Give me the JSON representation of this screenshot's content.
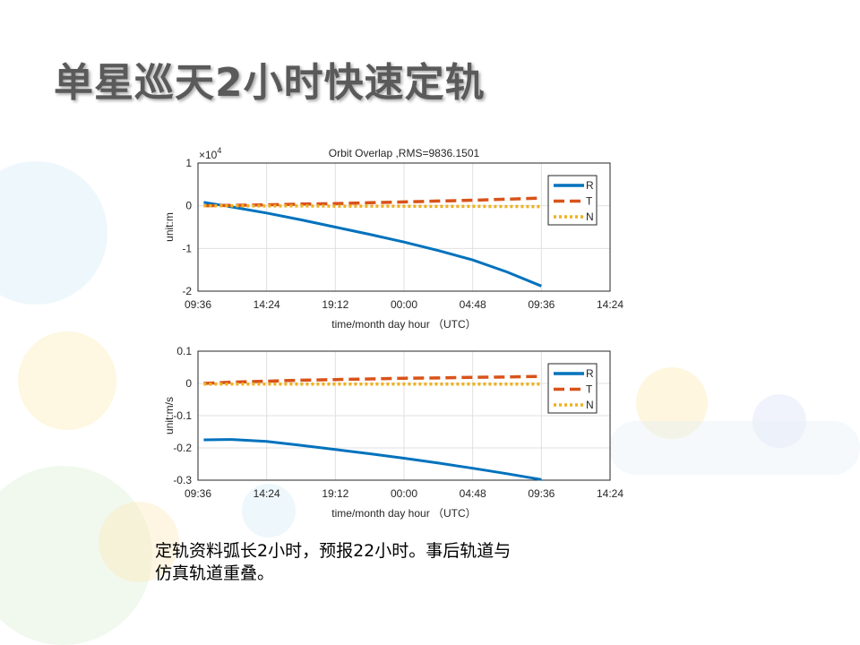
{
  "slide": {
    "title": "单星巡天2小时快速定轨",
    "caption_line1": "定轨资料弧长2小时，预报22小时。事后轨道与",
    "caption_line2": "仿真轨道重叠。"
  },
  "colors": {
    "R": "#0072bd",
    "T": "#d95319",
    "N": "#edb120"
  },
  "chart_data": [
    {
      "type": "line",
      "title": "Orbit Overlap ,RMS=9836.1501",
      "xlabel": "time/month day hour （UTC）",
      "ylabel": "unit:m",
      "y_exponent": "×10",
      "y_exponent_power": "4",
      "x_unit": "hours since 09:36",
      "xlim": [
        0,
        28.8
      ],
      "ylim": [
        -2,
        1
      ],
      "yticks": [
        1,
        0,
        -1,
        -2
      ],
      "ytick_labels": [
        "1",
        "0",
        "-1",
        "-2"
      ],
      "xtick_labels": [
        "09:36",
        "14:24",
        "19:12",
        "00:00",
        "04:48",
        "09:36",
        "14:24"
      ],
      "grid": true,
      "legend": "top-right",
      "x": [
        0.4,
        2.4,
        4.8,
        7.2,
        9.6,
        12,
        14.4,
        16.8,
        19.2,
        21.6,
        24
      ],
      "series": [
        {
          "name": "R",
          "style": "solid",
          "values": [
            0.08,
            -0.03,
            -0.17,
            -0.33,
            -0.5,
            -0.67,
            -0.85,
            -1.05,
            -1.27,
            -1.55,
            -1.88
          ]
        },
        {
          "name": "T",
          "style": "dashed",
          "values": [
            0,
            0.01,
            0.02,
            0.04,
            0.05,
            0.07,
            0.09,
            0.11,
            0.13,
            0.155,
            0.18
          ]
        },
        {
          "name": "N",
          "style": "dotted",
          "values": [
            0,
            0,
            -0.005,
            -0.005,
            -0.01,
            -0.01,
            -0.012,
            -0.015,
            -0.015,
            -0.018,
            -0.02
          ]
        }
      ]
    },
    {
      "type": "line",
      "title": "",
      "xlabel": "time/month day hour （UTC）",
      "ylabel": "unit:m/s",
      "x_unit": "hours since 09:36",
      "xlim": [
        0,
        28.8
      ],
      "ylim": [
        -0.3,
        0.1
      ],
      "yticks": [
        0.1,
        0,
        -0.1,
        -0.2,
        -0.3
      ],
      "ytick_labels": [
        "0.1",
        "0",
        "-0.1",
        "-0.2",
        "-0.3"
      ],
      "xtick_labels": [
        "09:36",
        "14:24",
        "19:12",
        "00:00",
        "04:48",
        "09:36",
        "14:24"
      ],
      "grid": true,
      "legend": "top-right",
      "x": [
        0.4,
        2.4,
        4.8,
        7.2,
        9.6,
        12,
        14.4,
        16.8,
        19.2,
        21.6,
        24
      ],
      "series": [
        {
          "name": "R",
          "style": "solid",
          "values": [
            -0.175,
            -0.174,
            -0.18,
            -0.192,
            -0.205,
            -0.218,
            -0.232,
            -0.247,
            -0.263,
            -0.28,
            -0.298
          ]
        },
        {
          "name": "T",
          "style": "dashed",
          "values": [
            0,
            0.004,
            0.007,
            0.01,
            0.012,
            0.014,
            0.016,
            0.017,
            0.019,
            0.02,
            0.022
          ]
        },
        {
          "name": "N",
          "style": "dotted",
          "values": [
            -0.002,
            -0.002,
            -0.002,
            -0.002,
            -0.002,
            -0.002,
            -0.002,
            -0.002,
            -0.002,
            -0.002,
            -0.002
          ]
        }
      ]
    }
  ]
}
